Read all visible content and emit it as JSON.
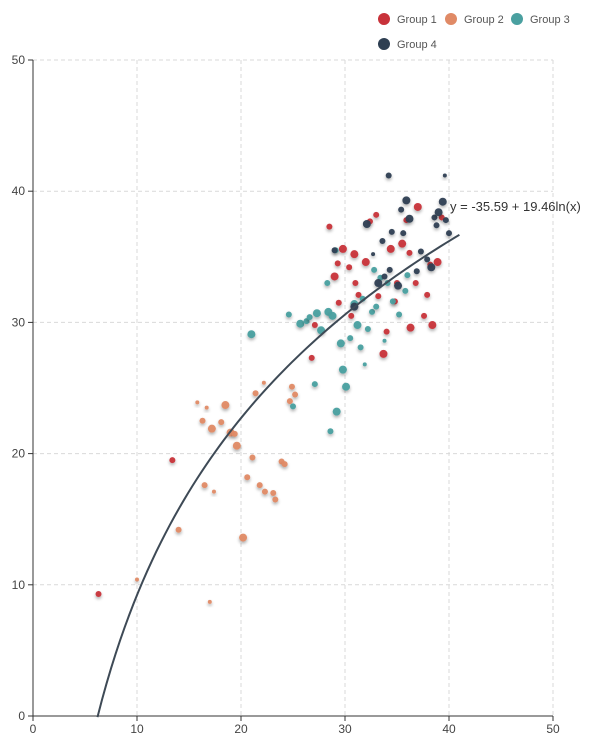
{
  "chart_data": {
    "type": "scatter",
    "xlim": [
      0,
      50
    ],
    "ylim": [
      0,
      50
    ],
    "x_ticks": [
      0,
      10,
      20,
      30,
      40,
      50
    ],
    "y_ticks": [
      0,
      10,
      20,
      30,
      40,
      50
    ],
    "grid": true,
    "legend_position": "top-right",
    "trendline": {
      "equation": "y = -35.59 + 19.46ln(x)",
      "intercept": -35.59,
      "coefficient": 19.46,
      "x_range": [
        6.2,
        41
      ]
    },
    "series": [
      {
        "name": "Group 1",
        "color": "#c8323a",
        "points": [
          [
            6.3,
            9.3,
            3
          ],
          [
            13.4,
            19.5,
            3
          ],
          [
            26.8,
            27.3,
            3
          ],
          [
            27.1,
            29.8,
            3
          ],
          [
            28.5,
            37.3,
            3
          ],
          [
            29.0,
            33.5,
            4
          ],
          [
            29.3,
            34.5,
            3
          ],
          [
            29.8,
            35.6,
            4
          ],
          [
            30.4,
            34.2,
            3
          ],
          [
            30.9,
            35.2,
            4
          ],
          [
            31.0,
            33.0,
            3
          ],
          [
            31.3,
            32.1,
            3
          ],
          [
            32.0,
            34.6,
            4
          ],
          [
            32.4,
            37.7,
            3
          ],
          [
            33.0,
            38.2,
            3
          ],
          [
            33.2,
            32.0,
            3
          ],
          [
            33.7,
            27.6,
            4
          ],
          [
            34.0,
            29.3,
            3
          ],
          [
            34.4,
            35.6,
            4
          ],
          [
            35.0,
            33.0,
            3
          ],
          [
            35.5,
            36.0,
            4
          ],
          [
            36.2,
            35.3,
            3
          ],
          [
            36.3,
            29.6,
            4
          ],
          [
            36.8,
            33.0,
            3
          ],
          [
            37.0,
            38.8,
            4
          ],
          [
            37.6,
            30.5,
            3
          ],
          [
            37.9,
            32.1,
            3
          ],
          [
            38.2,
            34.4,
            3
          ],
          [
            38.4,
            29.8,
            4
          ],
          [
            38.9,
            34.6,
            4
          ],
          [
            39.3,
            38.0,
            3
          ],
          [
            29.4,
            31.5,
            3
          ],
          [
            30.6,
            30.5,
            3
          ],
          [
            34.8,
            31.6,
            3
          ],
          [
            35.9,
            37.8,
            3
          ]
        ]
      },
      {
        "name": "Group 2",
        "color": "#e08a66",
        "points": [
          [
            14.0,
            14.2,
            3
          ],
          [
            15.8,
            23.9,
            2
          ],
          [
            16.3,
            22.5,
            3
          ],
          [
            16.5,
            17.6,
            3
          ],
          [
            16.7,
            23.5,
            2
          ],
          [
            17.2,
            21.9,
            4
          ],
          [
            17.4,
            17.1,
            2
          ],
          [
            18.1,
            22.4,
            3
          ],
          [
            18.5,
            23.7,
            4
          ],
          [
            19.0,
            21.6,
            4
          ],
          [
            19.4,
            21.5,
            3
          ],
          [
            19.6,
            20.6,
            4
          ],
          [
            20.2,
            13.6,
            4
          ],
          [
            20.6,
            18.2,
            3
          ],
          [
            21.1,
            19.7,
            3
          ],
          [
            21.4,
            24.6,
            3
          ],
          [
            21.8,
            17.6,
            3
          ],
          [
            22.3,
            17.1,
            3
          ],
          [
            23.1,
            17.0,
            3
          ],
          [
            23.3,
            16.5,
            3
          ],
          [
            23.9,
            19.4,
            3
          ],
          [
            24.2,
            19.2,
            3
          ],
          [
            24.9,
            25.1,
            3
          ],
          [
            25.2,
            24.5,
            3
          ],
          [
            17.0,
            8.7,
            2
          ],
          [
            22.2,
            25.4,
            2
          ],
          [
            10.0,
            10.4,
            2
          ],
          [
            24.7,
            24.0,
            3
          ]
        ]
      },
      {
        "name": "Group 3",
        "color": "#4aa0a0",
        "points": [
          [
            21.0,
            29.1,
            4
          ],
          [
            24.6,
            30.6,
            3
          ],
          [
            25.0,
            23.6,
            3
          ],
          [
            25.7,
            29.9,
            4
          ],
          [
            26.3,
            30.1,
            3
          ],
          [
            26.6,
            30.4,
            3
          ],
          [
            27.3,
            30.7,
            4
          ],
          [
            27.7,
            29.4,
            4
          ],
          [
            28.4,
            30.8,
            4
          ],
          [
            28.8,
            30.5,
            4
          ],
          [
            28.6,
            21.7,
            3
          ],
          [
            29.2,
            23.2,
            4
          ],
          [
            29.6,
            28.4,
            4
          ],
          [
            29.8,
            26.4,
            4
          ],
          [
            30.1,
            25.1,
            4
          ],
          [
            30.5,
            28.8,
            3
          ],
          [
            30.9,
            31.4,
            4
          ],
          [
            31.2,
            29.8,
            4
          ],
          [
            31.7,
            31.8,
            3
          ],
          [
            31.5,
            28.1,
            3
          ],
          [
            32.2,
            29.5,
            3
          ],
          [
            32.6,
            30.8,
            3
          ],
          [
            33.0,
            31.2,
            3
          ],
          [
            33.4,
            33.4,
            3
          ],
          [
            34.1,
            33.0,
            3
          ],
          [
            34.6,
            31.6,
            3
          ],
          [
            35.2,
            30.6,
            3
          ],
          [
            28.3,
            33.0,
            3
          ],
          [
            29.1,
            35.5,
            3
          ],
          [
            27.1,
            25.3,
            3
          ],
          [
            33.8,
            28.6,
            2
          ],
          [
            35.8,
            32.4,
            3
          ],
          [
            36.0,
            33.6,
            3
          ],
          [
            32.8,
            34.0,
            3
          ],
          [
            31.9,
            26.8,
            2
          ]
        ]
      },
      {
        "name": "Group 4",
        "color": "#2e3f52",
        "points": [
          [
            29.0,
            35.5,
            3
          ],
          [
            30.9,
            31.2,
            4
          ],
          [
            32.1,
            37.5,
            4
          ],
          [
            33.2,
            33.0,
            4
          ],
          [
            33.8,
            33.5,
            3
          ],
          [
            34.3,
            34.0,
            3
          ],
          [
            34.5,
            36.9,
            3
          ],
          [
            35.1,
            32.8,
            4
          ],
          [
            35.4,
            38.6,
            3
          ],
          [
            35.6,
            36.8,
            3
          ],
          [
            35.9,
            39.3,
            4
          ],
          [
            36.2,
            37.9,
            4
          ],
          [
            37.3,
            35.4,
            3
          ],
          [
            37.9,
            34.8,
            3
          ],
          [
            38.3,
            34.2,
            4
          ],
          [
            38.6,
            38.0,
            3
          ],
          [
            39.0,
            38.4,
            4
          ],
          [
            39.4,
            39.2,
            4
          ],
          [
            39.7,
            37.8,
            3
          ],
          [
            40.0,
            36.8,
            3
          ],
          [
            34.2,
            41.2,
            3
          ],
          [
            39.6,
            41.2,
            2
          ],
          [
            32.7,
            35.2,
            2
          ],
          [
            36.9,
            33.9,
            3
          ],
          [
            33.6,
            36.2,
            3
          ],
          [
            38.8,
            37.4,
            3
          ]
        ]
      }
    ]
  }
}
